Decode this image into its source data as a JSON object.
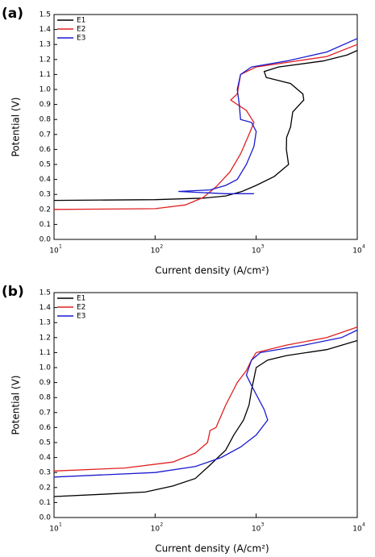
{
  "chart_data": [
    {
      "type": "line",
      "panel_label": "(a)",
      "xlabel": "Current density (A/cm²)",
      "ylabel": "Potential (V)",
      "xscale": "log",
      "xlim": [
        10,
        10000
      ],
      "ylim": [
        0,
        1.5
      ],
      "legend": "upper left",
      "xticks": [
        {
          "value": 10,
          "label": "10",
          "sup": "1"
        },
        {
          "value": 100,
          "label": "10",
          "sup": "2"
        },
        {
          "value": 1000,
          "label": "10",
          "sup": "3"
        },
        {
          "value": 10000,
          "label": "10",
          "sup": "4"
        }
      ],
      "yticks": [
        {
          "value": 0,
          "label": "0.0"
        },
        0.1,
        0.2,
        0.3,
        0.4,
        0.5,
        0.6,
        0.7,
        0.8,
        0.9,
        {
          "value": 1,
          "label": "1.0"
        },
        1.1,
        1.2,
        1.3,
        1.4,
        1.5
      ],
      "series": [
        {
          "name": "E1",
          "color": "#000000",
          "x": [
            10,
            100,
            300,
            500,
            724,
            1000,
            1510,
            2090,
            1990,
            2000,
            2190,
            2300,
            2960,
            2900,
            2190,
            1260,
            1200,
            1660,
            4570,
            7940,
            10000
          ],
          "values": [
            0.26,
            0.265,
            0.275,
            0.29,
            0.32,
            0.36,
            0.42,
            0.5,
            0.6,
            0.68,
            0.75,
            0.85,
            0.93,
            0.97,
            1.04,
            1.08,
            1.12,
            1.15,
            1.19,
            1.23,
            1.26
          ]
        },
        {
          "name": "E2",
          "color": "#e02020",
          "x": [
            10,
            100,
            200,
            300,
            400,
            550,
            700,
            850,
            950,
            800,
            650,
            560,
            650,
            700,
            1000,
            2000,
            5000,
            10000
          ],
          "values": [
            0.2,
            0.205,
            0.23,
            0.28,
            0.35,
            0.45,
            0.57,
            0.7,
            0.78,
            0.86,
            0.9,
            0.93,
            0.97,
            1.1,
            1.15,
            1.18,
            1.22,
            1.3
          ]
        },
        {
          "name": "E3",
          "color": "#1a1ad0",
          "x": [
            950,
            500,
            170,
            350,
            500,
            650,
            800,
            950,
            1000,
            900,
            700,
            680,
            650,
            700,
            900,
            2000,
            5000,
            10000
          ],
          "values": [
            0.305,
            0.305,
            0.32,
            0.33,
            0.36,
            0.4,
            0.5,
            0.62,
            0.72,
            0.78,
            0.8,
            0.9,
            1.0,
            1.1,
            1.15,
            1.19,
            1.25,
            1.34
          ]
        }
      ]
    },
    {
      "type": "line",
      "panel_label": "(b)",
      "xlabel": "Current density (A/cm²)",
      "ylabel": "Potential (V)",
      "xscale": "log",
      "xlim": [
        10,
        10000
      ],
      "ylim": [
        0,
        1.5
      ],
      "legend": "upper left",
      "xticks": [
        {
          "value": 10,
          "label": "10",
          "sup": "1"
        },
        {
          "value": 100,
          "label": "10",
          "sup": "2"
        },
        {
          "value": 1000,
          "label": "10",
          "sup": "3"
        },
        {
          "value": 10000,
          "label": "10",
          "sup": "4"
        }
      ],
      "yticks": [
        {
          "value": 0,
          "label": "0.0"
        },
        0.1,
        0.2,
        0.3,
        0.4,
        0.5,
        0.6,
        0.7,
        0.8,
        0.9,
        {
          "value": 1,
          "label": "1.0"
        },
        1.1,
        1.2,
        1.3,
        1.4,
        1.5
      ],
      "series": [
        {
          "name": "E1",
          "color": "#000000",
          "x": [
            10,
            30,
            80,
            150,
            250,
            350,
            500,
            600,
            750,
            850,
            900,
            1000,
            1300,
            2000,
            5000,
            10000
          ],
          "values": [
            0.14,
            0.155,
            0.17,
            0.21,
            0.26,
            0.35,
            0.45,
            0.55,
            0.65,
            0.75,
            0.85,
            1.0,
            1.05,
            1.08,
            1.12,
            1.18
          ]
        },
        {
          "name": "E2",
          "color": "#e02020",
          "x": [
            10,
            50,
            150,
            250,
            330,
            350,
            400,
            500,
            650,
            800,
            900,
            1000,
            2000,
            5000,
            10000
          ],
          "values": [
            0.31,
            0.33,
            0.37,
            0.43,
            0.5,
            0.58,
            0.6,
            0.75,
            0.9,
            0.98,
            1.05,
            1.1,
            1.15,
            1.2,
            1.27
          ]
        },
        {
          "name": "E3",
          "color": "#1a1ad0",
          "x": [
            10,
            100,
            250,
            450,
            700,
            1000,
            1300,
            1200,
            900,
            800,
            900,
            1100,
            3000,
            7000,
            10000
          ],
          "values": [
            0.27,
            0.3,
            0.34,
            0.4,
            0.47,
            0.55,
            0.65,
            0.72,
            0.88,
            0.95,
            1.05,
            1.1,
            1.15,
            1.2,
            1.25
          ]
        }
      ]
    }
  ]
}
